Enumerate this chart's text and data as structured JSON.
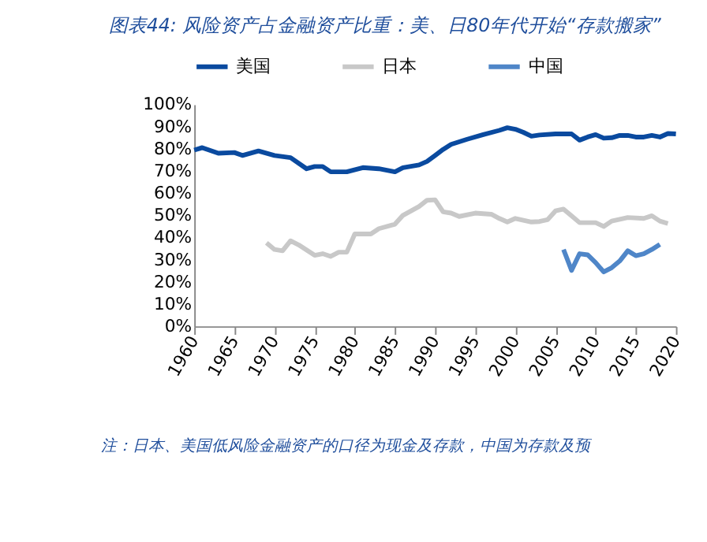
{
  "chart_data": {
    "type": "line",
    "title": "图表44: 风险资产占金融资产比重：美、日80年代开始“存款搬家”",
    "annotations": [
      "注：日本、美国低风险金融资产的口径为现金及存款，中国为存款及预"
    ],
    "series": [
      {
        "name": "美国",
        "color": "#0a4a9f",
        "x": [
          1960,
          1961,
          1963,
          1965,
          1966,
          1968,
          1970,
          1972,
          1974,
          1975,
          1976,
          1977,
          1979,
          1981,
          1983,
          1985,
          1986,
          1988,
          1989,
          1990,
          1991,
          1992,
          1994,
          1996,
          1998,
          1999,
          2000,
          2001,
          2002,
          2003,
          2005,
          2007,
          2008,
          2009,
          2010,
          2011,
          2012,
          2013,
          2014,
          2015,
          2016,
          2017,
          2018,
          2019,
          2020
        ],
        "values": [
          79.4,
          80.5,
          78,
          78.3,
          77,
          79,
          77,
          76,
          71,
          72,
          72,
          69.6,
          69.6,
          71.5,
          71,
          69.6,
          71.5,
          72.7,
          74.3,
          77,
          79.7,
          82,
          84.3,
          86.4,
          88.3,
          89.5,
          88.8,
          87.4,
          85.7,
          86.2,
          86.7,
          86.7,
          83.9,
          85.3,
          86.4,
          84.8,
          85,
          86,
          86,
          85.3,
          85.3,
          86,
          85.3,
          86.9,
          86.7
        ]
      },
      {
        "name": "日本",
        "color": "#c8c8c8",
        "x": [
          1969,
          1970,
          1971,
          1972,
          1973,
          1975,
          1976,
          1977,
          1978,
          1979,
          1980,
          1981,
          1982,
          1983,
          1985,
          1986,
          1988,
          1989,
          1990,
          1991,
          1992,
          1993,
          1995,
          1997,
          1998,
          1999,
          2000,
          2002,
          2003,
          2004,
          2005,
          2006,
          2007,
          2008,
          2010,
          2011,
          2012,
          2014,
          2016,
          2017,
          2018,
          2019
        ],
        "values": [
          37.6,
          34.6,
          34,
          38.5,
          36.7,
          32,
          32.7,
          31.5,
          33.4,
          33.4,
          41.6,
          41.6,
          41.6,
          44,
          46,
          50,
          54,
          56.8,
          57,
          51.6,
          51,
          49.5,
          51,
          50.5,
          48.6,
          47,
          48.6,
          47,
          47.2,
          48,
          52,
          52.8,
          49.8,
          46.7,
          46.7,
          45,
          47.4,
          49,
          48.6,
          49.8,
          47.4,
          46.3
        ]
      },
      {
        "name": "中国",
        "color": "#4f86c8",
        "x": [
          2006,
          2007,
          2008,
          2009,
          2010,
          2011,
          2012,
          2013,
          2014,
          2015,
          2016,
          2017,
          2018
        ],
        "values": [
          34.6,
          25.2,
          32.7,
          32.2,
          28.7,
          24.5,
          26.4,
          29.4,
          34,
          31.8,
          32.7,
          34.6,
          36.9
        ]
      }
    ],
    "xlim": [
      1960,
      2020
    ],
    "xticks": [
      1960,
      1965,
      1970,
      1975,
      1980,
      1985,
      1990,
      1995,
      2000,
      2005,
      2010,
      2015,
      2020
    ],
    "ylim": [
      0,
      100
    ],
    "yticks": [
      {
        "value": 0,
        "label": "0%"
      },
      {
        "value": 10,
        "label": "10%"
      },
      {
        "value": 20,
        "label": "20%"
      },
      {
        "value": 30,
        "label": "30%"
      },
      {
        "value": 40,
        "label": "40%"
      },
      {
        "value": 50,
        "label": "50%"
      },
      {
        "value": 60,
        "label": "60%"
      },
      {
        "value": 70,
        "label": "70%"
      },
      {
        "value": 80,
        "label": "80%"
      },
      {
        "value": 90,
        "label": "90%"
      },
      {
        "value": 100,
        "label": "100%"
      }
    ],
    "grid": false,
    "legend": "top",
    "line_style": "solid",
    "marker": "none"
  }
}
